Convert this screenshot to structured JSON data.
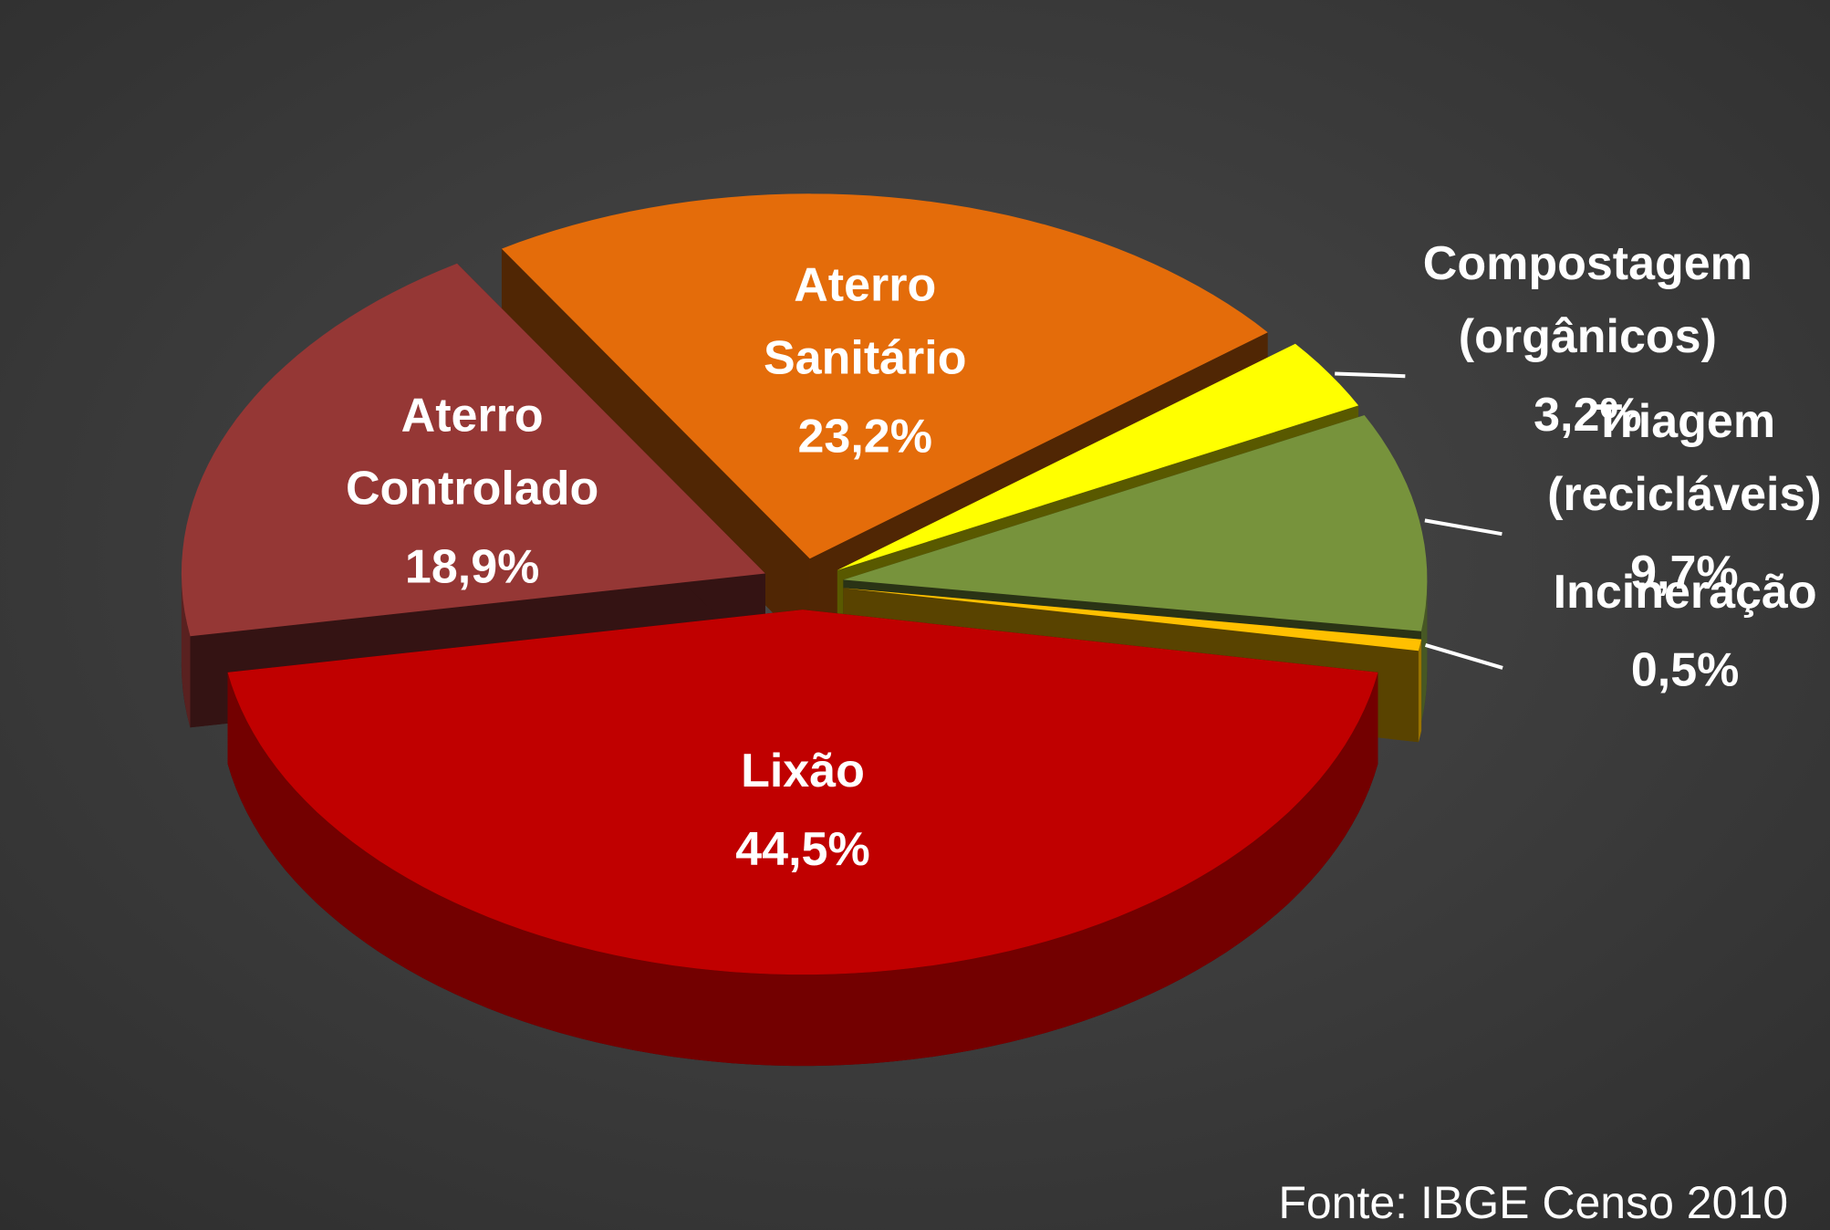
{
  "chart_data": {
    "type": "pie",
    "categories": [
      "Lixão",
      "Aterro Controlado",
      "Aterro Sanitário",
      "Compostagem (orgânicos)",
      "Triagem (recicláveis)",
      "Incineração"
    ],
    "values": [
      44.5,
      18.9,
      23.2,
      3.2,
      9.7,
      0.5
    ],
    "value_labels": [
      "44,5%",
      "18,9%",
      "23,2%",
      "3,2%",
      "9,7%",
      "0,5%"
    ],
    "colors": [
      "#c00000",
      "#953735",
      "#e46c0a",
      "#ffff00",
      "#77933c",
      "#ffc000"
    ],
    "source": "Fonte: IBGE Censo 2010"
  }
}
